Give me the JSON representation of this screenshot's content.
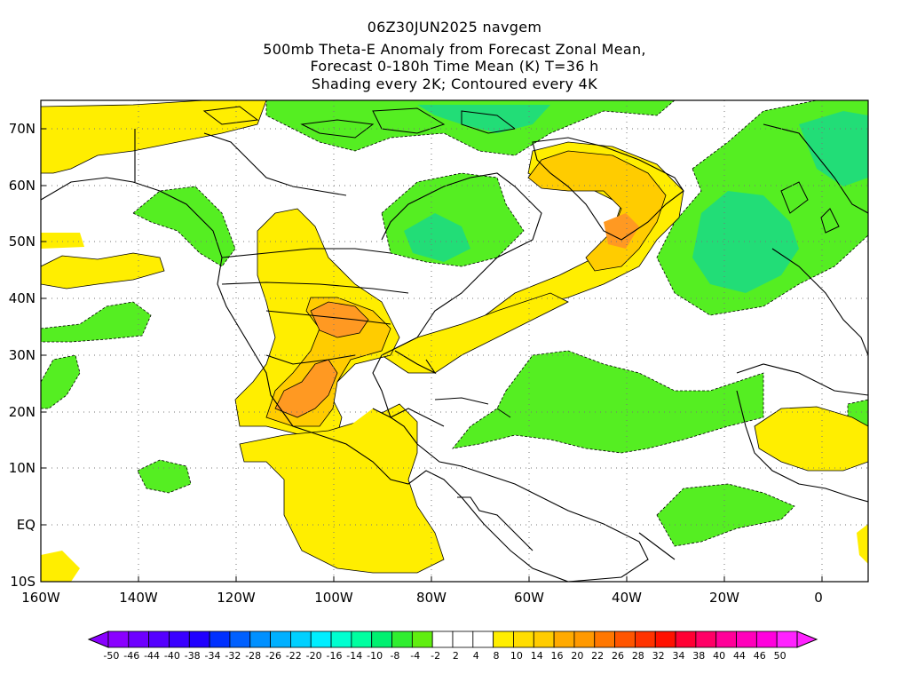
{
  "titles": [
    "06Z30JUN2025 navgem",
    "500mb Theta-E Anomaly from Forecast Zonal Mean,",
    "Forecast 0-180h Time Mean (K) T=36 h",
    "Shading every 2K; Contoured every 4K"
  ],
  "lat_labels": [
    "70N",
    "60N",
    "50N",
    "40N",
    "30N",
    "20N",
    "10N",
    "EQ",
    "10S"
  ],
  "lon_labels": [
    "160W",
    "140W",
    "120W",
    "100W",
    "80W",
    "60W",
    "40W",
    "20W",
    "0"
  ],
  "colorbar": {
    "labels": [
      "-50",
      "-46",
      "-44",
      "-40",
      "-38",
      "-34",
      "-32",
      "-28",
      "-26",
      "-22",
      "-20",
      "-16",
      "-14",
      "-10",
      "-8",
      "-4",
      "-2",
      "2",
      "4",
      "8",
      "10",
      "14",
      "16",
      "20",
      "22",
      "26",
      "28",
      "32",
      "34",
      "38",
      "40",
      "44",
      "46",
      "50"
    ],
    "colors": [
      "#8a00ff",
      "#6e00ff",
      "#5500ff",
      "#3a00ff",
      "#2000ff",
      "#0030ff",
      "#0060ff",
      "#0090ff",
      "#00b0ff",
      "#00d0ff",
      "#00eeff",
      "#00ffd0",
      "#00ffa0",
      "#00f070",
      "#30ee30",
      "#60ee10",
      "#ffffff",
      "#ffffff",
      "#ffffff",
      "#ffee00",
      "#ffdd00",
      "#ffcc00",
      "#ffaa00",
      "#ff9900",
      "#ff7700",
      "#ff5500",
      "#ff3300",
      "#ff1100",
      "#ff0033",
      "#ff0066",
      "#ff0099",
      "#ff00bb",
      "#ff00dd",
      "#ff22ff"
    ]
  },
  "map_colors": {
    "green_light": "#55ee22",
    "green_teal": "#22dd77",
    "yellow": "#ffee00",
    "gold": "#ffcc00",
    "orange": "#ff9922"
  }
}
